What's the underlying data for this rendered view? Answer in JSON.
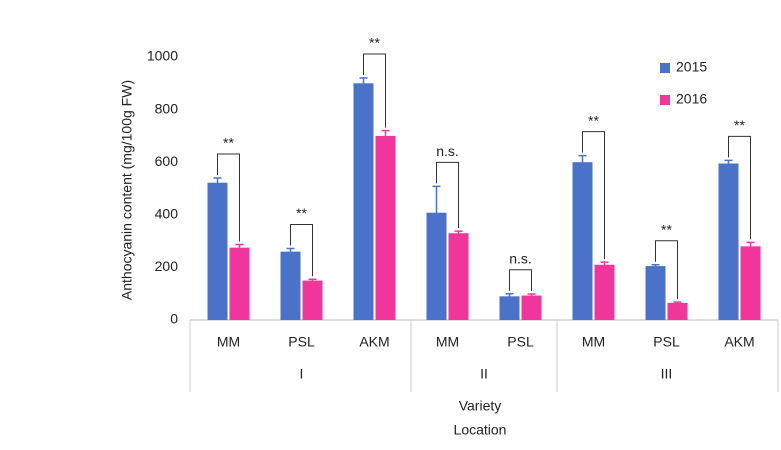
{
  "chart_data": {
    "type": "bar",
    "y_label": "Anthocyanin content (mg/100g FW)",
    "x_labels": [
      "Variety",
      "Location"
    ],
    "groups": [
      {
        "label": "I",
        "categories": [
          "MM",
          "PSL",
          "AKM"
        ]
      },
      {
        "label": "II",
        "categories": [
          "MM",
          "PSL"
        ]
      },
      {
        "label": "III",
        "categories": [
          "MM",
          "PSL",
          "AKM"
        ]
      }
    ],
    "series": [
      {
        "name": "2015",
        "color": "#4a72c8",
        "values": [
          522,
          260,
          900,
          408,
          90,
          600,
          205,
          595
        ],
        "errors": [
          18,
          12,
          20,
          100,
          10,
          25,
          5,
          12
        ]
      },
      {
        "name": "2016",
        "color": "#f0369b",
        "values": [
          275,
          150,
          700,
          330,
          93,
          210,
          65,
          280
        ],
        "errors": [
          12,
          5,
          20,
          8,
          6,
          10,
          3,
          15
        ]
      }
    ],
    "significance": [
      "**",
      "**",
      "**",
      "n.s.",
      "n.s.",
      "**",
      "**",
      "**"
    ],
    "ylim": [
      0,
      1000
    ],
    "yticks": [
      0,
      200,
      400,
      600,
      800,
      1000
    ],
    "grid": false,
    "legend": "top-right"
  }
}
